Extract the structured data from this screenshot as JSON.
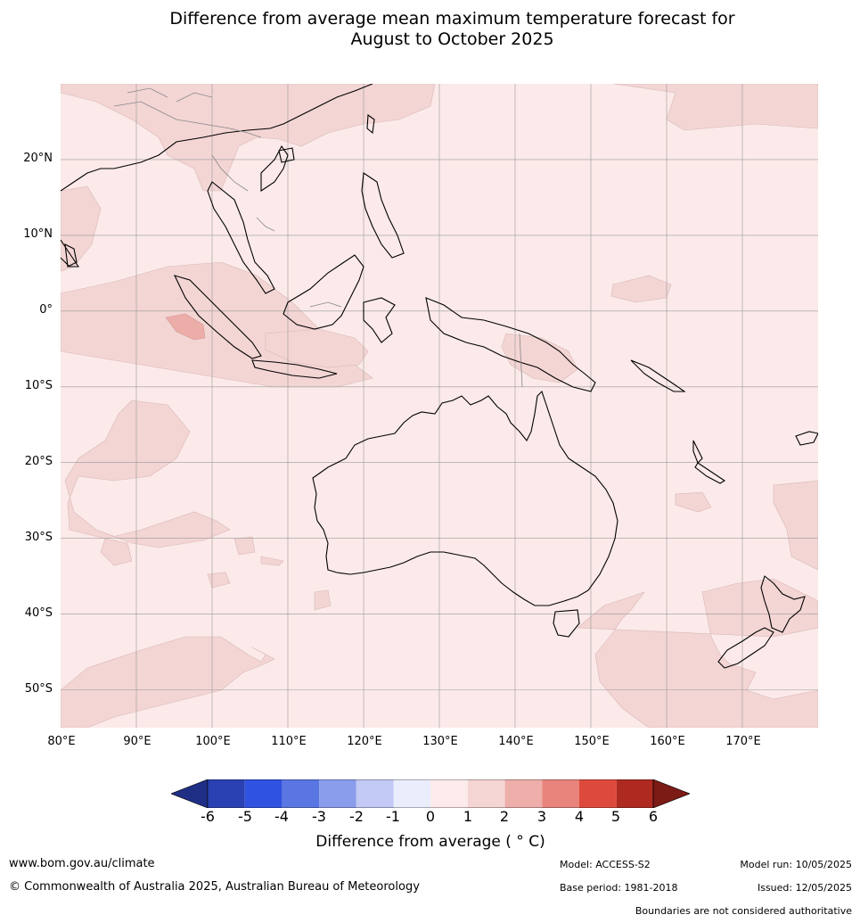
{
  "title_line1": "Difference from average mean maximum temperature forecast for",
  "title_line2": "August to October 2025",
  "map": {
    "lat_labels": [
      "20°N",
      "10°N",
      "0°",
      "10°S",
      "20°S",
      "30°S",
      "40°S",
      "50°S"
    ],
    "lon_labels": [
      "80°E",
      "90°E",
      "100°E",
      "110°E",
      "120°E",
      "130°E",
      "140°E",
      "150°E",
      "160°E",
      "170°E"
    ],
    "extent": {
      "lon_min": 80,
      "lon_max": 180,
      "lat_min": -55,
      "lat_max": 30
    },
    "colors": {
      "ocean_0_1": "#fbeae9",
      "band_1_2": "#f3d5d4",
      "band_2_3": "#ecaca8",
      "grid": "#999999",
      "coast": "#000000",
      "border": "#888888"
    }
  },
  "colorbar": {
    "ticks": [
      "-6",
      "-5",
      "-4",
      "-3",
      "-2",
      "-1",
      "0",
      "1",
      "2",
      "3",
      "4",
      "5",
      "6"
    ],
    "colors": [
      "#1f2f85",
      "#2a41b4",
      "#3052e0",
      "#5a76e3",
      "#8a9dec",
      "#c1c9f4",
      "#eaedfc",
      "#fcebea",
      "#f5d5d4",
      "#eeaea9",
      "#e9847c",
      "#dd4a3d",
      "#ae2a21",
      "#7c1a16"
    ],
    "label": "Difference from average ( ° C)"
  },
  "footer": {
    "website": "www.bom.gov.au/climate",
    "copyright": "© Commonwealth of Australia 2025, Australian Bureau of Meteorology",
    "model": "Model: ACCESS-S2",
    "base_period": "Base period: 1981-2018",
    "model_run": "Model run: 10/05/2025",
    "issued": "Issued: 12/05/2025",
    "disclaimer": "Boundaries are not considered authoritative"
  }
}
